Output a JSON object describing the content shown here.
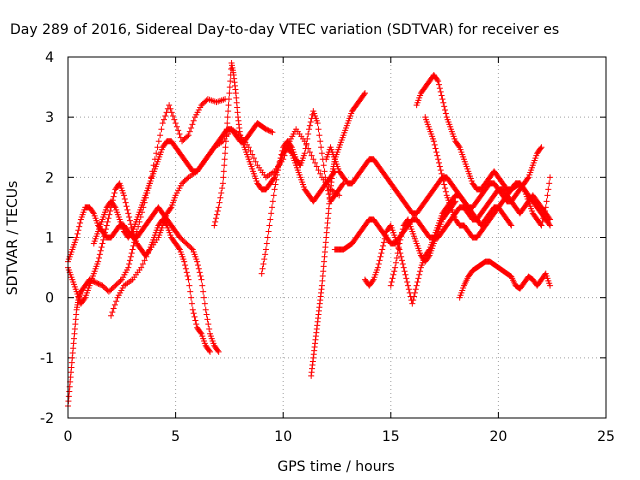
{
  "chart_data": {
    "type": "scatter",
    "title": "Day 289 of 2016, Sidereal Day-to-day VTEC variation (SDTVAR) for receiver es",
    "xlabel": "GPS time / hours",
    "ylabel": "SDTVAR / TECUs",
    "xlim": [
      0,
      25
    ],
    "ylim": [
      -2,
      4
    ],
    "xticks": [
      0,
      5,
      10,
      15,
      20,
      25
    ],
    "yticks": [
      -2,
      -1,
      0,
      1,
      2,
      3,
      4
    ],
    "grid": true,
    "marker": "+",
    "color": "#ff0000",
    "series": [
      {
        "x": [
          0.0,
          0.1,
          0.2,
          0.3,
          0.4,
          0.5,
          0.6,
          0.8,
          1.0,
          1.3,
          1.6,
          1.9,
          2.2,
          2.5,
          2.8,
          3.0,
          3.2,
          3.5,
          3.8,
          4.1,
          4.4,
          4.7,
          5.0,
          5.3,
          5.6,
          5.9,
          6.2,
          6.5,
          6.9,
          7.3
        ],
        "y": [
          -1.8,
          -1.4,
          -1.0,
          -0.6,
          -0.2,
          0.0,
          0.1,
          0.2,
          0.3,
          0.25,
          0.2,
          0.1,
          0.2,
          0.3,
          0.5,
          0.8,
          1.1,
          1.5,
          1.9,
          2.4,
          2.9,
          3.2,
          2.9,
          2.6,
          2.7,
          3.0,
          3.2,
          3.3,
          3.25,
          3.3
        ]
      },
      {
        "x": [
          0.0,
          0.2,
          0.4,
          0.6,
          0.8,
          1.0,
          1.2,
          1.4,
          1.6,
          1.8,
          2.0,
          2.2,
          2.4,
          2.6,
          2.8,
          3.0,
          3.2,
          3.4,
          3.6,
          3.8,
          4.0,
          4.2,
          4.4,
          4.6,
          4.8,
          5.0,
          5.2,
          5.5,
          5.8,
          6.0,
          6.2,
          6.4,
          6.6,
          6.8,
          7.0
        ],
        "y": [
          0.6,
          0.8,
          1.0,
          1.3,
          1.5,
          1.5,
          1.4,
          1.2,
          1.1,
          1.0,
          1.0,
          1.1,
          1.2,
          1.2,
          1.1,
          1.0,
          1.0,
          1.1,
          1.2,
          1.3,
          1.4,
          1.5,
          1.4,
          1.3,
          1.2,
          1.1,
          1.0,
          0.9,
          0.8,
          0.6,
          0.3,
          -0.2,
          -0.6,
          -0.8,
          -0.9
        ]
      },
      {
        "x": [
          0.0,
          0.2,
          0.4,
          0.6,
          0.8,
          1.0,
          1.2,
          1.4,
          1.6,
          1.8,
          2.0,
          2.2,
          2.4,
          2.6,
          2.8,
          3.0,
          3.2,
          3.4,
          3.6,
          3.8,
          4.0,
          4.2,
          4.4,
          4.6,
          4.8,
          5.0,
          5.2,
          5.4,
          5.6,
          5.8,
          6.0,
          6.2,
          6.4,
          6.6
        ],
        "y": [
          0.5,
          0.3,
          0.1,
          -0.1,
          0.0,
          0.2,
          0.4,
          0.6,
          0.9,
          1.2,
          1.5,
          1.8,
          1.9,
          1.7,
          1.4,
          1.1,
          0.9,
          0.8,
          0.7,
          0.8,
          1.0,
          1.2,
          1.3,
          1.2,
          1.0,
          0.9,
          0.8,
          0.6,
          0.3,
          -0.2,
          -0.5,
          -0.6,
          -0.8,
          -0.9
        ]
      },
      {
        "x": [
          1.2,
          1.4,
          1.6,
          1.8,
          2.0,
          2.2,
          2.4,
          2.6,
          2.8,
          3.0,
          3.2,
          3.4,
          3.6,
          3.8,
          4.0,
          4.2,
          4.4,
          4.6,
          4.8,
          5.0,
          5.2,
          5.4,
          5.6,
          5.8,
          6.0,
          6.2,
          6.4,
          6.6,
          6.8,
          7.0,
          7.2,
          7.4,
          7.6,
          7.8,
          8.0,
          8.2,
          8.4,
          8.6,
          8.8,
          9.0,
          9.2,
          9.5
        ],
        "y": [
          0.9,
          1.1,
          1.3,
          1.5,
          1.6,
          1.5,
          1.3,
          1.1,
          1.0,
          1.1,
          1.3,
          1.5,
          1.7,
          1.9,
          2.1,
          2.3,
          2.5,
          2.6,
          2.6,
          2.5,
          2.4,
          2.3,
          2.2,
          2.1,
          2.1,
          2.2,
          2.3,
          2.4,
          2.5,
          2.6,
          2.7,
          2.8,
          2.8,
          2.7,
          2.6,
          2.6,
          2.7,
          2.8,
          2.9,
          2.85,
          2.8,
          2.75
        ]
      },
      {
        "x": [
          2.0,
          2.3,
          2.6,
          3.0,
          3.4,
          3.8,
          4.2,
          4.4,
          4.6,
          4.8,
          5.0,
          5.3,
          5.6,
          6.0,
          6.4,
          6.8,
          7.2,
          7.6,
          8.0,
          8.4,
          8.8,
          9.2,
          9.6,
          10.0,
          10.3,
          10.6,
          11.0,
          11.4,
          11.8,
          12.2,
          12.6
        ],
        "y": [
          -0.3,
          0.0,
          0.2,
          0.3,
          0.5,
          0.8,
          1.0,
          1.2,
          1.4,
          1.5,
          1.7,
          1.9,
          2.0,
          2.1,
          2.3,
          2.5,
          2.6,
          2.8,
          2.7,
          2.5,
          2.2,
          2.0,
          2.1,
          2.3,
          2.6,
          2.8,
          2.6,
          2.3,
          2.0,
          1.8,
          1.7
        ]
      },
      {
        "x": [
          6.8,
          7.0,
          7.2,
          7.3,
          7.4,
          7.5,
          7.6,
          7.7,
          7.8,
          7.9,
          8.0,
          8.2,
          8.4,
          8.6,
          8.8,
          9.0,
          9.2,
          9.4,
          9.6,
          9.8,
          10.0,
          10.2,
          10.4,
          10.6,
          10.8,
          11.0,
          11.2,
          11.4,
          11.6,
          11.8,
          12.0,
          12.2,
          12.4
        ],
        "y": [
          1.2,
          1.5,
          1.9,
          2.4,
          2.9,
          3.4,
          3.9,
          3.7,
          3.4,
          3.0,
          2.7,
          2.5,
          2.3,
          2.1,
          1.9,
          1.8,
          1.8,
          1.9,
          2.0,
          2.2,
          2.4,
          2.5,
          2.4,
          2.2,
          2.0,
          1.8,
          1.7,
          1.6,
          1.7,
          1.8,
          1.9,
          2.0,
          2.1
        ]
      },
      {
        "x": [
          9.0,
          9.2,
          9.4,
          9.6,
          9.8,
          10.0,
          10.2,
          10.4,
          10.6,
          10.8,
          11.0,
          11.2,
          11.4,
          11.6,
          11.8,
          12.0,
          12.2,
          12.4,
          12.6,
          12.8
        ],
        "y": [
          0.4,
          0.8,
          1.3,
          1.8,
          2.2,
          2.5,
          2.6,
          2.5,
          2.3,
          2.2,
          2.4,
          2.8,
          3.1,
          2.9,
          2.4,
          1.9,
          1.6,
          1.7,
          1.8,
          1.9
        ]
      },
      {
        "x": [
          11.3,
          11.4,
          11.5,
          11.6,
          11.7,
          11.8,
          11.9,
          12.0,
          12.1,
          12.2,
          12.3,
          12.4,
          12.6,
          12.8,
          13.0,
          13.2,
          13.4,
          13.6,
          13.8
        ],
        "y": [
          -1.3,
          -1.0,
          -0.7,
          -0.4,
          -0.1,
          0.2,
          0.6,
          1.0,
          1.4,
          1.8,
          2.1,
          2.3,
          2.5,
          2.7,
          2.9,
          3.1,
          3.2,
          3.3,
          3.4
        ]
      },
      {
        "x": [
          12.0,
          12.2,
          12.4,
          12.6,
          12.8,
          13.0,
          13.2,
          13.4,
          13.6,
          13.8,
          14.0,
          14.2,
          14.4,
          14.6,
          14.8,
          15.0,
          15.2,
          15.4,
          15.6,
          15.8,
          16.0,
          16.2,
          16.4,
          16.6,
          16.8,
          17.0,
          17.2,
          17.4,
          17.6,
          17.8,
          18.0,
          18.2,
          18.4,
          18.6,
          18.8,
          19.0,
          19.2,
          19.4,
          19.6,
          19.8,
          20.0,
          20.2,
          20.4,
          20.6
        ],
        "y": [
          2.3,
          2.5,
          2.3,
          2.1,
          2.0,
          1.9,
          1.9,
          2.0,
          2.1,
          2.2,
          2.3,
          2.3,
          2.2,
          2.1,
          2.0,
          1.9,
          1.8,
          1.7,
          1.6,
          1.5,
          1.4,
          1.4,
          1.5,
          1.6,
          1.7,
          1.8,
          1.9,
          2.0,
          2.0,
          1.9,
          1.8,
          1.7,
          1.6,
          1.5,
          1.4,
          1.3,
          1.2,
          1.3,
          1.4,
          1.5,
          1.5,
          1.4,
          1.3,
          1.2
        ]
      },
      {
        "x": [
          12.4,
          12.6,
          12.8,
          13.0,
          13.2,
          13.4,
          13.6,
          13.8,
          14.0,
          14.2,
          14.4,
          14.6,
          14.8,
          15.0,
          15.2,
          15.4,
          15.6,
          15.8,
          16.0,
          16.2,
          16.4,
          16.6,
          16.8,
          17.0,
          17.2,
          17.4,
          17.6,
          17.8,
          18.0,
          18.2,
          18.4,
          18.6,
          18.8,
          19.0,
          19.2,
          19.4,
          19.6,
          19.8,
          20.0,
          20.2,
          20.4,
          20.6,
          20.8,
          21.0,
          21.2,
          21.4,
          21.6,
          21.8,
          22.0,
          22.2,
          22.4
        ],
        "y": [
          0.8,
          0.8,
          0.8,
          0.85,
          0.9,
          1.0,
          1.1,
          1.2,
          1.3,
          1.3,
          1.2,
          1.1,
          1.0,
          0.9,
          0.9,
          1.0,
          1.1,
          1.2,
          1.3,
          1.3,
          1.2,
          1.1,
          1.0,
          1.0,
          1.0,
          1.1,
          1.2,
          1.3,
          1.4,
          1.5,
          1.5,
          1.4,
          1.3,
          1.3,
          1.4,
          1.5,
          1.6,
          1.7,
          1.8,
          1.8,
          1.7,
          1.6,
          1.5,
          1.4,
          1.5,
          1.6,
          1.7,
          1.6,
          1.5,
          1.4,
          1.3
        ]
      },
      {
        "x": [
          13.8,
          14.0,
          14.2,
          14.4,
          14.6,
          14.8,
          15.0,
          15.2,
          15.4,
          15.6,
          15.8,
          16.0,
          16.2,
          16.4,
          16.6,
          16.8,
          17.0,
          17.2,
          17.4,
          17.6,
          17.8,
          18.0,
          18.2,
          18.4,
          18.6,
          18.8,
          19.0,
          19.2,
          19.4,
          19.6,
          19.8,
          20.0,
          20.2,
          20.4,
          20.6,
          20.8,
          21.0,
          21.2,
          21.4,
          21.6,
          21.8,
          22.0
        ],
        "y": [
          0.3,
          0.2,
          0.3,
          0.5,
          0.8,
          1.1,
          1.2,
          1.0,
          0.8,
          0.5,
          0.2,
          -0.1,
          0.2,
          0.5,
          0.7,
          0.8,
          1.0,
          1.2,
          1.4,
          1.5,
          1.6,
          1.7,
          1.7,
          1.6,
          1.5,
          1.5,
          1.6,
          1.7,
          1.8,
          1.9,
          1.9,
          1.8,
          1.7,
          1.6,
          1.6,
          1.7,
          1.8,
          1.9,
          2.0,
          2.2,
          2.4,
          2.5
        ]
      },
      {
        "x": [
          16.2,
          16.4,
          16.6,
          16.8,
          17.0,
          17.2,
          17.4,
          17.6,
          17.8,
          18.0,
          18.2,
          18.4,
          18.6,
          18.8,
          19.0,
          19.2,
          19.4,
          19.6,
          19.8,
          20.0,
          20.2,
          20.4,
          20.6,
          20.8,
          21.0,
          21.2,
          21.4,
          21.6,
          21.8,
          22.0,
          22.2,
          22.4
        ],
        "y": [
          3.2,
          3.4,
          3.5,
          3.6,
          3.7,
          3.6,
          3.3,
          3.0,
          2.8,
          2.6,
          2.5,
          2.3,
          2.1,
          1.9,
          1.8,
          1.8,
          1.9,
          2.0,
          2.1,
          2.0,
          1.9,
          1.8,
          1.8,
          1.9,
          1.9,
          1.8,
          1.6,
          1.4,
          1.3,
          1.2,
          1.5,
          2.0
        ]
      },
      {
        "x": [
          16.6,
          16.8,
          17.0,
          17.2,
          17.4,
          17.6,
          17.8,
          18.0,
          18.2,
          18.4,
          18.6,
          18.8,
          19.0,
          19.2,
          19.4,
          19.6,
          19.8,
          20.0,
          20.2,
          20.4,
          20.6,
          20.8,
          21.0,
          21.2,
          21.4,
          21.6,
          21.8,
          22.0,
          22.2,
          22.4
        ],
        "y": [
          3.0,
          2.8,
          2.6,
          2.3,
          2.0,
          1.7,
          1.5,
          1.3,
          1.2,
          1.2,
          1.1,
          1.0,
          1.0,
          1.1,
          1.2,
          1.3,
          1.4,
          1.5,
          1.6,
          1.7,
          1.8,
          1.85,
          1.9,
          1.8,
          1.7,
          1.6,
          1.5,
          1.4,
          1.3,
          1.2
        ]
      },
      {
        "x": [
          18.2,
          18.4,
          18.6,
          18.8,
          19.0,
          19.2,
          19.4,
          19.6,
          19.8,
          20.0,
          20.2,
          20.4,
          20.6,
          20.8,
          21.0,
          21.2,
          21.4,
          21.6,
          21.8,
          22.0,
          22.2,
          22.4
        ],
        "y": [
          0.0,
          0.2,
          0.35,
          0.45,
          0.5,
          0.55,
          0.6,
          0.6,
          0.55,
          0.5,
          0.45,
          0.4,
          0.35,
          0.2,
          0.15,
          0.25,
          0.35,
          0.3,
          0.2,
          0.3,
          0.4,
          0.2
        ]
      },
      {
        "x": [
          15.0,
          15.2,
          15.4,
          15.6,
          15.8,
          16.0,
          16.2,
          16.4,
          16.6,
          16.8,
          17.0,
          17.2,
          17.4,
          17.6,
          17.8,
          18.0
        ],
        "y": [
          0.2,
          0.5,
          0.9,
          1.2,
          1.3,
          1.1,
          0.9,
          0.7,
          0.6,
          0.7,
          0.9,
          1.1,
          1.3,
          1.4,
          1.5,
          1.6
        ]
      }
    ]
  }
}
